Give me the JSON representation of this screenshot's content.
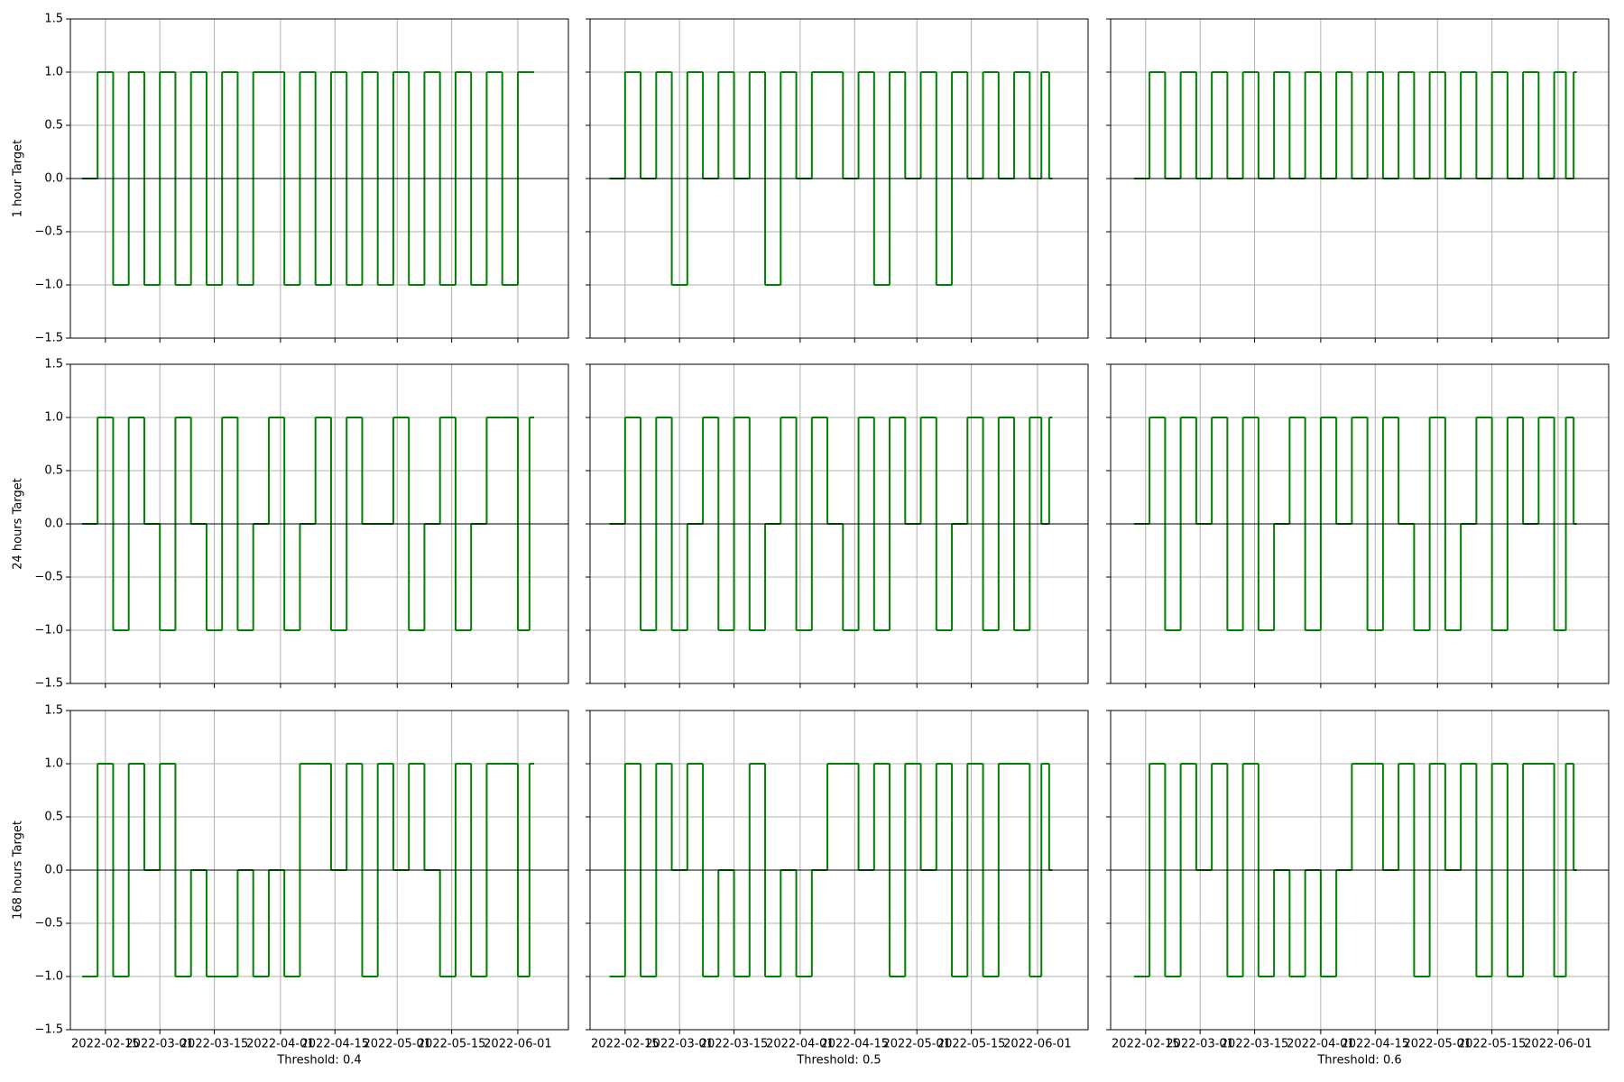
{
  "chart_data": [
    {
      "type": "line",
      "ylabel": "1 hour Target",
      "color": "#008000",
      "grid": true,
      "hline": 0,
      "x": [
        "2022-02-09",
        "2022-02-13",
        "2022-02-17",
        "2022-02-21",
        "2022-02-25",
        "2022-03-01",
        "2022-03-05",
        "2022-03-09",
        "2022-03-13",
        "2022-03-17",
        "2022-03-21",
        "2022-03-25",
        "2022-03-29",
        "2022-04-02",
        "2022-04-06",
        "2022-04-10",
        "2022-04-14",
        "2022-04-18",
        "2022-04-22",
        "2022-04-26",
        "2022-04-30",
        "2022-05-04",
        "2022-05-08",
        "2022-05-12",
        "2022-05-16",
        "2022-05-20",
        "2022-05-24",
        "2022-05-28",
        "2022-06-01",
        "2022-06-04"
      ],
      "values": [
        0,
        1,
        -1,
        1,
        -1,
        1,
        -1,
        1,
        -1,
        1,
        -1,
        1,
        1,
        -1,
        1,
        -1,
        1,
        -1,
        1,
        -1,
        1,
        -1,
        1,
        -1,
        1,
        -1,
        1,
        -1,
        1,
        1
      ],
      "xlim": [
        "2022-02-06",
        "2022-06-14"
      ],
      "xticks": [
        "2022-02-15",
        "2022-03-01",
        "2022-03-15",
        "2022-04-01",
        "2022-04-15",
        "2022-05-01",
        "2022-05-15",
        "2022-06-01"
      ],
      "ylim": [
        -1.5,
        1.5
      ],
      "yticks": [
        {
          "value": -1.5,
          "label": "−1.5"
        },
        {
          "value": -1,
          "label": "−1.0"
        },
        {
          "value": -0.5,
          "label": "−0.5"
        },
        {
          "value": 0,
          "label": "0.0"
        },
        {
          "value": 0.5,
          "label": "0.5"
        },
        {
          "value": 1,
          "label": "1.0"
        },
        {
          "value": 1.5,
          "label": "1.5"
        }
      ]
    },
    {
      "type": "line",
      "color": "#008000",
      "grid": true,
      "hline": 0,
      "x": [
        "2022-02-11",
        "2022-02-15",
        "2022-02-19",
        "2022-02-23",
        "2022-02-27",
        "2022-03-03",
        "2022-03-07",
        "2022-03-11",
        "2022-03-15",
        "2022-03-19",
        "2022-03-23",
        "2022-03-27",
        "2022-03-31",
        "2022-04-04",
        "2022-04-08",
        "2022-04-12",
        "2022-04-16",
        "2022-04-20",
        "2022-04-24",
        "2022-04-28",
        "2022-05-02",
        "2022-05-06",
        "2022-05-10",
        "2022-05-14",
        "2022-05-18",
        "2022-05-22",
        "2022-05-26",
        "2022-05-30",
        "2022-06-02",
        "2022-06-04"
      ],
      "values": [
        0,
        1,
        0,
        1,
        -1,
        1,
        0,
        1,
        0,
        1,
        -1,
        1,
        0,
        1,
        1,
        0,
        1,
        -1,
        1,
        0,
        1,
        -1,
        1,
        0,
        1,
        0,
        1,
        0,
        1,
        0
      ],
      "xlim": [
        "2022-02-06",
        "2022-06-14"
      ],
      "xticks": [
        "2022-02-15",
        "2022-03-01",
        "2022-03-15",
        "2022-04-01",
        "2022-04-15",
        "2022-05-01",
        "2022-05-15",
        "2022-06-01"
      ],
      "ylim": [
        -1.5,
        1.5
      ],
      "yticks": [
        {
          "value": -1.5,
          "label": "−1.5"
        },
        {
          "value": -1,
          "label": "−1.0"
        },
        {
          "value": -0.5,
          "label": "−0.5"
        },
        {
          "value": 0,
          "label": "0.0"
        },
        {
          "value": 0.5,
          "label": "0.5"
        },
        {
          "value": 1,
          "label": "1.0"
        },
        {
          "value": 1.5,
          "label": "1.5"
        }
      ]
    },
    {
      "type": "line",
      "color": "#008000",
      "grid": true,
      "hline": 0,
      "x": [
        "2022-02-12",
        "2022-02-16",
        "2022-02-20",
        "2022-02-24",
        "2022-02-28",
        "2022-03-04",
        "2022-03-08",
        "2022-03-12",
        "2022-03-16",
        "2022-03-20",
        "2022-03-24",
        "2022-03-28",
        "2022-04-01",
        "2022-04-05",
        "2022-04-09",
        "2022-04-13",
        "2022-04-17",
        "2022-04-21",
        "2022-04-25",
        "2022-04-29",
        "2022-05-03",
        "2022-05-07",
        "2022-05-11",
        "2022-05-15",
        "2022-05-19",
        "2022-05-23",
        "2022-05-27",
        "2022-05-31",
        "2022-06-03",
        "2022-06-05"
      ],
      "values": [
        0,
        1,
        0,
        1,
        0,
        1,
        0,
        1,
        0,
        1,
        0,
        1,
        0,
        1,
        0,
        1,
        0,
        1,
        0,
        1,
        0,
        1,
        0,
        1,
        0,
        1,
        0,
        1,
        0,
        1
      ],
      "xlim": [
        "2022-02-06",
        "2022-06-14"
      ],
      "xticks": [
        "2022-02-15",
        "2022-03-01",
        "2022-03-15",
        "2022-04-01",
        "2022-04-15",
        "2022-05-01",
        "2022-05-15",
        "2022-06-01"
      ],
      "ylim": [
        -1.5,
        1.5
      ],
      "yticks": [
        {
          "value": -1.5,
          "label": "−1.5"
        },
        {
          "value": -1,
          "label": "−1.0"
        },
        {
          "value": -0.5,
          "label": "−0.5"
        },
        {
          "value": 0,
          "label": "0.0"
        },
        {
          "value": 0.5,
          "label": "0.5"
        },
        {
          "value": 1,
          "label": "1.0"
        },
        {
          "value": 1.5,
          "label": "1.5"
        }
      ]
    },
    {
      "type": "line",
      "ylabel": "24 hours Target",
      "color": "#008000",
      "grid": true,
      "hline": 0,
      "x": [
        "2022-02-09",
        "2022-02-13",
        "2022-02-17",
        "2022-02-21",
        "2022-02-25",
        "2022-03-01",
        "2022-03-05",
        "2022-03-09",
        "2022-03-13",
        "2022-03-17",
        "2022-03-21",
        "2022-03-25",
        "2022-03-29",
        "2022-04-02",
        "2022-04-06",
        "2022-04-10",
        "2022-04-14",
        "2022-04-18",
        "2022-04-22",
        "2022-04-26",
        "2022-04-30",
        "2022-05-04",
        "2022-05-08",
        "2022-05-12",
        "2022-05-16",
        "2022-05-20",
        "2022-05-24",
        "2022-05-28",
        "2022-06-01",
        "2022-06-04"
      ],
      "values": [
        0,
        1,
        -1,
        1,
        0,
        -1,
        1,
        0,
        -1,
        1,
        -1,
        0,
        1,
        -1,
        0,
        1,
        -1,
        1,
        0,
        0,
        1,
        -1,
        0,
        1,
        -1,
        0,
        1,
        1,
        -1,
        1
      ],
      "xlim": [
        "2022-02-06",
        "2022-06-14"
      ],
      "xticks": [
        "2022-02-15",
        "2022-03-01",
        "2022-03-15",
        "2022-04-01",
        "2022-04-15",
        "2022-05-01",
        "2022-05-15",
        "2022-06-01"
      ],
      "ylim": [
        -1.5,
        1.5
      ],
      "yticks": [
        {
          "value": -1.5,
          "label": "−1.5"
        },
        {
          "value": -1,
          "label": "−1.0"
        },
        {
          "value": -0.5,
          "label": "−0.5"
        },
        {
          "value": 0,
          "label": "0.0"
        },
        {
          "value": 0.5,
          "label": "0.5"
        },
        {
          "value": 1,
          "label": "1.0"
        },
        {
          "value": 1.5,
          "label": "1.5"
        }
      ]
    },
    {
      "type": "line",
      "color": "#008000",
      "grid": true,
      "hline": 0,
      "x": [
        "2022-02-11",
        "2022-02-15",
        "2022-02-19",
        "2022-02-23",
        "2022-02-27",
        "2022-03-03",
        "2022-03-07",
        "2022-03-11",
        "2022-03-15",
        "2022-03-19",
        "2022-03-23",
        "2022-03-27",
        "2022-03-31",
        "2022-04-04",
        "2022-04-08",
        "2022-04-12",
        "2022-04-16",
        "2022-04-20",
        "2022-04-24",
        "2022-04-28",
        "2022-05-02",
        "2022-05-06",
        "2022-05-10",
        "2022-05-14",
        "2022-05-18",
        "2022-05-22",
        "2022-05-26",
        "2022-05-30",
        "2022-06-02",
        "2022-06-04"
      ],
      "values": [
        0,
        1,
        -1,
        1,
        -1,
        0,
        1,
        -1,
        1,
        -1,
        0,
        1,
        -1,
        1,
        0,
        -1,
        1,
        -1,
        1,
        0,
        1,
        -1,
        0,
        1,
        -1,
        1,
        -1,
        1,
        0,
        1
      ],
      "xlim": [
        "2022-02-06",
        "2022-06-14"
      ],
      "xticks": [
        "2022-02-15",
        "2022-03-01",
        "2022-03-15",
        "2022-04-01",
        "2022-04-15",
        "2022-05-01",
        "2022-05-15",
        "2022-06-01"
      ],
      "ylim": [
        -1.5,
        1.5
      ],
      "yticks": [
        {
          "value": -1.5,
          "label": "−1.5"
        },
        {
          "value": -1,
          "label": "−1.0"
        },
        {
          "value": -0.5,
          "label": "−0.5"
        },
        {
          "value": 0,
          "label": "0.0"
        },
        {
          "value": 0.5,
          "label": "0.5"
        },
        {
          "value": 1,
          "label": "1.0"
        },
        {
          "value": 1.5,
          "label": "1.5"
        }
      ]
    },
    {
      "type": "line",
      "color": "#008000",
      "grid": true,
      "hline": 0,
      "x": [
        "2022-02-12",
        "2022-02-16",
        "2022-02-20",
        "2022-02-24",
        "2022-02-28",
        "2022-03-04",
        "2022-03-08",
        "2022-03-12",
        "2022-03-16",
        "2022-03-20",
        "2022-03-24",
        "2022-03-28",
        "2022-04-01",
        "2022-04-05",
        "2022-04-09",
        "2022-04-13",
        "2022-04-17",
        "2022-04-21",
        "2022-04-25",
        "2022-04-29",
        "2022-05-03",
        "2022-05-07",
        "2022-05-11",
        "2022-05-15",
        "2022-05-19",
        "2022-05-23",
        "2022-05-27",
        "2022-05-31",
        "2022-06-03",
        "2022-06-05"
      ],
      "values": [
        0,
        1,
        -1,
        1,
        0,
        1,
        -1,
        1,
        -1,
        0,
        1,
        -1,
        1,
        0,
        1,
        -1,
        1,
        0,
        -1,
        1,
        -1,
        0,
        1,
        -1,
        1,
        0,
        1,
        -1,
        1,
        0
      ],
      "xlim": [
        "2022-02-06",
        "2022-06-14"
      ],
      "xticks": [
        "2022-02-15",
        "2022-03-01",
        "2022-03-15",
        "2022-04-01",
        "2022-04-15",
        "2022-05-01",
        "2022-05-15",
        "2022-06-01"
      ],
      "ylim": [
        -1.5,
        1.5
      ],
      "yticks": [
        {
          "value": -1.5,
          "label": "−1.5"
        },
        {
          "value": -1,
          "label": "−1.0"
        },
        {
          "value": -0.5,
          "label": "−0.5"
        },
        {
          "value": 0,
          "label": "0.0"
        },
        {
          "value": 0.5,
          "label": "0.5"
        },
        {
          "value": 1,
          "label": "1.0"
        },
        {
          "value": 1.5,
          "label": "1.5"
        }
      ]
    },
    {
      "type": "line",
      "ylabel": "168 hours Target",
      "xlabel": "Threshold: 0.4",
      "color": "#008000",
      "grid": true,
      "hline": 0,
      "x": [
        "2022-02-09",
        "2022-02-13",
        "2022-02-17",
        "2022-02-21",
        "2022-02-25",
        "2022-03-01",
        "2022-03-05",
        "2022-03-09",
        "2022-03-13",
        "2022-03-17",
        "2022-03-21",
        "2022-03-25",
        "2022-03-29",
        "2022-04-02",
        "2022-04-06",
        "2022-04-10",
        "2022-04-14",
        "2022-04-18",
        "2022-04-22",
        "2022-04-26",
        "2022-04-30",
        "2022-05-04",
        "2022-05-08",
        "2022-05-12",
        "2022-05-16",
        "2022-05-20",
        "2022-05-24",
        "2022-05-28",
        "2022-06-01",
        "2022-06-04"
      ],
      "values": [
        -1,
        1,
        -1,
        1,
        0,
        1,
        -1,
        0,
        -1,
        -1,
        0,
        -1,
        0,
        -1,
        1,
        1,
        0,
        1,
        -1,
        1,
        0,
        1,
        0,
        -1,
        1,
        -1,
        1,
        1,
        -1,
        1
      ],
      "xlim": [
        "2022-02-06",
        "2022-06-14"
      ],
      "xticks": [
        "2022-02-15",
        "2022-03-01",
        "2022-03-15",
        "2022-04-01",
        "2022-04-15",
        "2022-05-01",
        "2022-05-15",
        "2022-06-01"
      ],
      "ylim": [
        -1.5,
        1.5
      ],
      "yticks": [
        {
          "value": -1.5,
          "label": "−1.5"
        },
        {
          "value": -1,
          "label": "−1.0"
        },
        {
          "value": -0.5,
          "label": "−0.5"
        },
        {
          "value": 0,
          "label": "0.0"
        },
        {
          "value": 0.5,
          "label": "0.5"
        },
        {
          "value": 1,
          "label": "1.0"
        },
        {
          "value": 1.5,
          "label": "1.5"
        }
      ]
    },
    {
      "type": "line",
      "xlabel": "Threshold: 0.5",
      "color": "#008000",
      "grid": true,
      "hline": 0,
      "x": [
        "2022-02-11",
        "2022-02-15",
        "2022-02-19",
        "2022-02-23",
        "2022-02-27",
        "2022-03-03",
        "2022-03-07",
        "2022-03-11",
        "2022-03-15",
        "2022-03-19",
        "2022-03-23",
        "2022-03-27",
        "2022-03-31",
        "2022-04-04",
        "2022-04-08",
        "2022-04-12",
        "2022-04-16",
        "2022-04-20",
        "2022-04-24",
        "2022-04-28",
        "2022-05-02",
        "2022-05-06",
        "2022-05-10",
        "2022-05-14",
        "2022-05-18",
        "2022-05-22",
        "2022-05-26",
        "2022-05-30",
        "2022-06-02",
        "2022-06-04"
      ],
      "values": [
        -1,
        1,
        -1,
        1,
        0,
        1,
        -1,
        0,
        -1,
        1,
        -1,
        0,
        -1,
        0,
        1,
        1,
        0,
        1,
        -1,
        1,
        0,
        1,
        -1,
        1,
        -1,
        1,
        1,
        -1,
        1,
        0
      ],
      "xlim": [
        "2022-02-06",
        "2022-06-14"
      ],
      "xticks": [
        "2022-02-15",
        "2022-03-01",
        "2022-03-15",
        "2022-04-01",
        "2022-04-15",
        "2022-05-01",
        "2022-05-15",
        "2022-06-01"
      ],
      "ylim": [
        -1.5,
        1.5
      ],
      "yticks": [
        {
          "value": -1.5,
          "label": "−1.5"
        },
        {
          "value": -1,
          "label": "−1.0"
        },
        {
          "value": -0.5,
          "label": "−0.5"
        },
        {
          "value": 0,
          "label": "0.0"
        },
        {
          "value": 0.5,
          "label": "0.5"
        },
        {
          "value": 1,
          "label": "1.0"
        },
        {
          "value": 1.5,
          "label": "1.5"
        }
      ]
    },
    {
      "type": "line",
      "xlabel": "Threshold: 0.6",
      "color": "#008000",
      "grid": true,
      "hline": 0,
      "x": [
        "2022-02-12",
        "2022-02-16",
        "2022-02-20",
        "2022-02-24",
        "2022-02-28",
        "2022-03-04",
        "2022-03-08",
        "2022-03-12",
        "2022-03-16",
        "2022-03-20",
        "2022-03-24",
        "2022-03-28",
        "2022-04-01",
        "2022-04-05",
        "2022-04-09",
        "2022-04-13",
        "2022-04-17",
        "2022-04-21",
        "2022-04-25",
        "2022-04-29",
        "2022-05-03",
        "2022-05-07",
        "2022-05-11",
        "2022-05-15",
        "2022-05-19",
        "2022-05-23",
        "2022-05-27",
        "2022-05-31",
        "2022-06-03",
        "2022-06-05"
      ],
      "values": [
        -1,
        1,
        -1,
        1,
        0,
        1,
        -1,
        1,
        -1,
        0,
        -1,
        0,
        -1,
        0,
        1,
        1,
        0,
        1,
        -1,
        1,
        0,
        1,
        -1,
        1,
        -1,
        1,
        1,
        -1,
        1,
        0
      ],
      "xlim": [
        "2022-02-06",
        "2022-06-14"
      ],
      "xticks": [
        "2022-02-15",
        "2022-03-01",
        "2022-03-15",
        "2022-04-01",
        "2022-04-15",
        "2022-05-01",
        "2022-05-15",
        "2022-06-01"
      ],
      "ylim": [
        -1.5,
        1.5
      ],
      "yticks": [
        {
          "value": -1.5,
          "label": "−1.5"
        },
        {
          "value": -1,
          "label": "−1.0"
        },
        {
          "value": -0.5,
          "label": "−0.5"
        },
        {
          "value": 0,
          "label": "0.0"
        },
        {
          "value": 0.5,
          "label": "0.5"
        },
        {
          "value": 1,
          "label": "1.0"
        },
        {
          "value": 1.5,
          "label": "1.5"
        }
      ]
    }
  ]
}
